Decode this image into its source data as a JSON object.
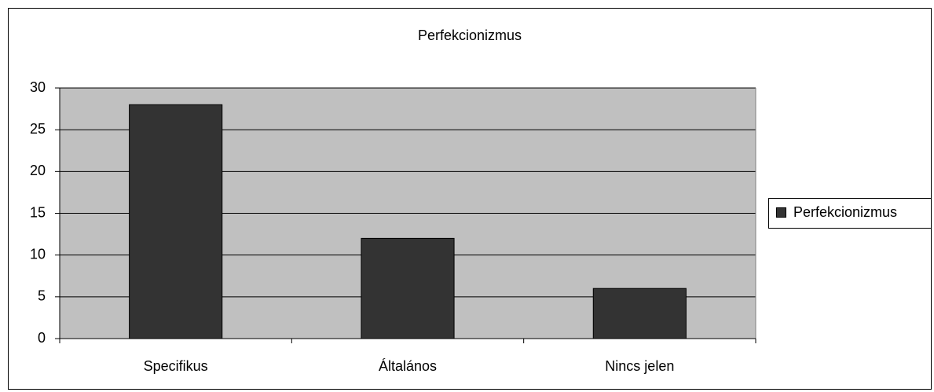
{
  "chart_data": {
    "type": "bar",
    "title": "Perfekcionizmus",
    "categories": [
      "Specifikus",
      "Általános",
      "Nincs jelen"
    ],
    "series": [
      {
        "name": "Perfekcionizmus",
        "color": "#333333",
        "values": [
          28,
          12,
          6
        ]
      }
    ],
    "ylim": [
      0,
      30
    ],
    "yticks": [
      0,
      5,
      10,
      15,
      20,
      25,
      30
    ],
    "grid": true,
    "legend": "right"
  }
}
